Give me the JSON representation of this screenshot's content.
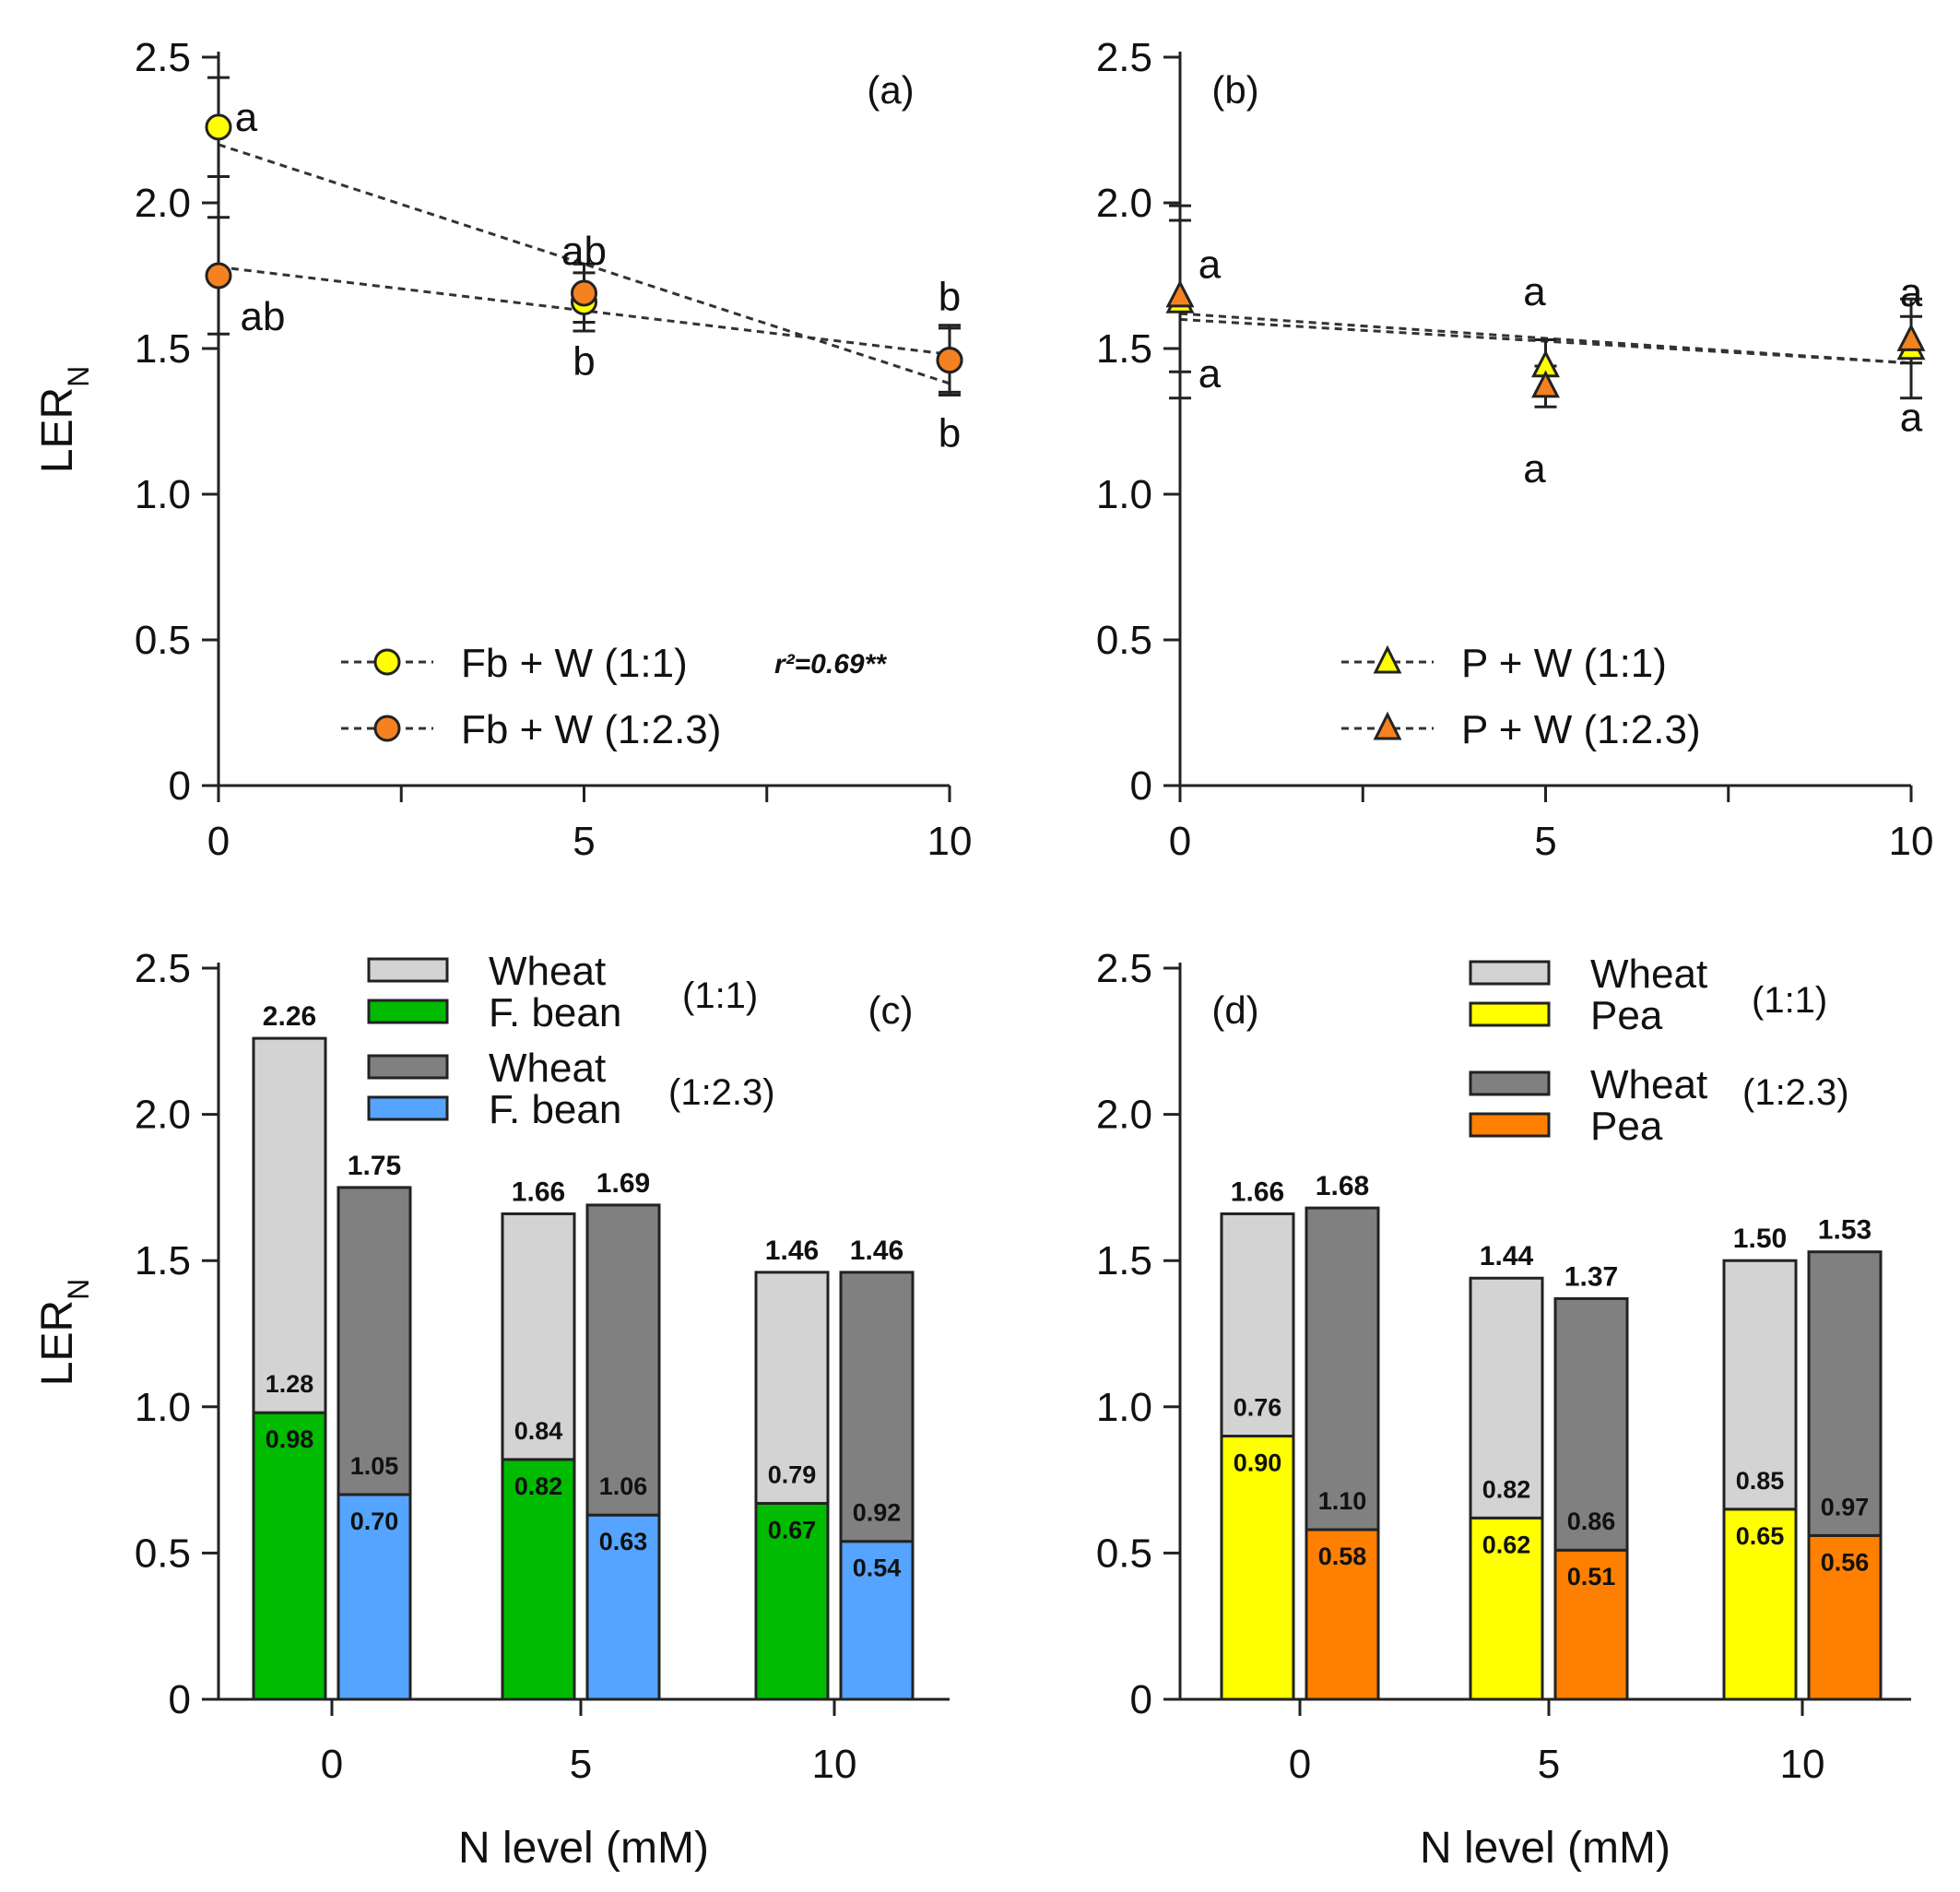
{
  "figure": {
    "y_axis_label": "LER",
    "y_axis_label_sub": "N",
    "x_axis_label": "N level (mM)"
  },
  "chart_data": [
    {
      "panel": "a",
      "label": "(a)",
      "type": "scatter",
      "x": [
        0,
        5,
        10
      ],
      "ylim": [
        0,
        2.5
      ],
      "yticks": [
        "0",
        "0.5",
        "1.0",
        "1.5",
        "2.0",
        "2.5"
      ],
      "xticks": [
        "0",
        "5",
        "10"
      ],
      "series": [
        {
          "name": "Fb + W (1:1)",
          "marker": "circle",
          "color": "#ffff00",
          "values": [
            2.26,
            1.66,
            1.46
          ],
          "err": [
            0.17,
            0.1,
            0.11
          ],
          "letters": [
            "a",
            "b",
            "b"
          ],
          "trend": [
            2.2,
            1.38
          ],
          "annotation": "r²=0.69**"
        },
        {
          "name": "Fb + W (1:2.3)",
          "marker": "circle",
          "color": "#f58220",
          "values": [
            1.75,
            1.69,
            1.46
          ],
          "err": [
            0.2,
            0.1,
            0.12
          ],
          "letters": [
            "ab",
            "ab",
            "b"
          ],
          "trend": [
            1.78,
            1.48
          ]
        }
      ]
    },
    {
      "panel": "b",
      "label": "(b)",
      "type": "scatter",
      "x": [
        0,
        5,
        10
      ],
      "ylim": [
        0,
        2.5
      ],
      "yticks": [
        "0",
        "0.5",
        "1.0",
        "1.5",
        "2.0",
        "2.5"
      ],
      "xticks": [
        "0",
        "5",
        "10"
      ],
      "series": [
        {
          "name": "P + W (1:1)",
          "marker": "triangle",
          "color": "#ffff00",
          "values": [
            1.66,
            1.44,
            1.5
          ],
          "err": [
            0.33,
            0.09,
            0.17
          ],
          "letters": [
            "a",
            "a",
            "a"
          ],
          "trend": [
            1.62,
            1.45
          ]
        },
        {
          "name": "P + W (1:2.3)",
          "marker": "triangle",
          "color": "#f58220",
          "values": [
            1.68,
            1.37,
            1.53
          ],
          "err": [
            0.26,
            0.07,
            0.08
          ],
          "letters": [
            "a",
            "a",
            "a"
          ],
          "trend": [
            1.6,
            1.45
          ]
        }
      ]
    },
    {
      "panel": "c",
      "label": "(c)",
      "type": "bar",
      "stacked": true,
      "categories": [
        "0",
        "5",
        "10"
      ],
      "ylim": [
        0,
        2.5
      ],
      "yticks": [
        "0",
        "0.5",
        "1.0",
        "1.5",
        "2.0",
        "2.5"
      ],
      "groups": [
        {
          "ratio": "(1:1)",
          "legume": "F. bean",
          "legume_color": "#00bb00",
          "wheat_color": "#d3d3d3",
          "legume_values": [
            0.98,
            0.82,
            0.67
          ],
          "wheat_values": [
            1.28,
            0.84,
            0.79
          ],
          "legume_labels": [
            "0.98",
            "0.82",
            "0.67"
          ],
          "wheat_labels": [
            "1.28",
            "0.84",
            "0.79"
          ],
          "totals": [
            "2.26",
            "1.66",
            "1.46"
          ]
        },
        {
          "ratio": "(1:2.3)",
          "legume": "F. bean",
          "legume_color": "#55a4ff",
          "wheat_color": "#808080",
          "legume_values": [
            0.7,
            0.63,
            0.54
          ],
          "wheat_values": [
            1.05,
            1.06,
            0.92
          ],
          "legume_labels": [
            "0.70",
            "0.63",
            "0.54"
          ],
          "wheat_labels": [
            "1.05",
            "1.06",
            "0.92"
          ],
          "totals": [
            "1.75",
            "1.69",
            "1.46"
          ]
        }
      ],
      "legend": [
        {
          "name": "Wheat",
          "color": "#d3d3d3"
        },
        {
          "name": "F. bean",
          "color": "#00bb00"
        },
        {
          "name": "Wheat",
          "color": "#808080"
        },
        {
          "name": "F. bean",
          "color": "#55a4ff"
        }
      ],
      "legend_ratios": [
        "(1:1)",
        "(1:2.3)"
      ]
    },
    {
      "panel": "d",
      "label": "(d)",
      "type": "bar",
      "stacked": true,
      "categories": [
        "0",
        "5",
        "10"
      ],
      "ylim": [
        0,
        2.5
      ],
      "yticks": [
        "0",
        "0.5",
        "1.0",
        "1.5",
        "2.0",
        "2.5"
      ],
      "groups": [
        {
          "ratio": "(1:1)",
          "legume": "Pea",
          "legume_color": "#ffff00",
          "wheat_color": "#d3d3d3",
          "legume_values": [
            0.9,
            0.62,
            0.65
          ],
          "wheat_values": [
            0.76,
            0.82,
            0.85
          ],
          "legume_labels": [
            "0.90",
            "0.62",
            "0.65"
          ],
          "wheat_labels": [
            "0.76",
            "0.82",
            "0.85"
          ],
          "totals": [
            "1.66",
            "1.44",
            "1.50"
          ]
        },
        {
          "ratio": "(1:2.3)",
          "legume": "Pea",
          "legume_color": "#ff8000",
          "wheat_color": "#808080",
          "legume_values": [
            0.58,
            0.51,
            0.56
          ],
          "wheat_values": [
            1.1,
            0.86,
            0.97
          ],
          "legume_labels": [
            "0.58",
            "0.51",
            "0.56"
          ],
          "wheat_labels": [
            "1.10",
            "0.86",
            "0.97"
          ],
          "totals": [
            "1.68",
            "1.37",
            "1.53"
          ]
        }
      ],
      "legend": [
        {
          "name": "Wheat",
          "color": "#d3d3d3"
        },
        {
          "name": "Pea",
          "color": "#ffff00"
        },
        {
          "name": "Wheat",
          "color": "#808080"
        },
        {
          "name": "Pea",
          "color": "#ff8000"
        }
      ],
      "legend_ratios": [
        "(1:1)",
        "(1:2.3)"
      ]
    }
  ]
}
